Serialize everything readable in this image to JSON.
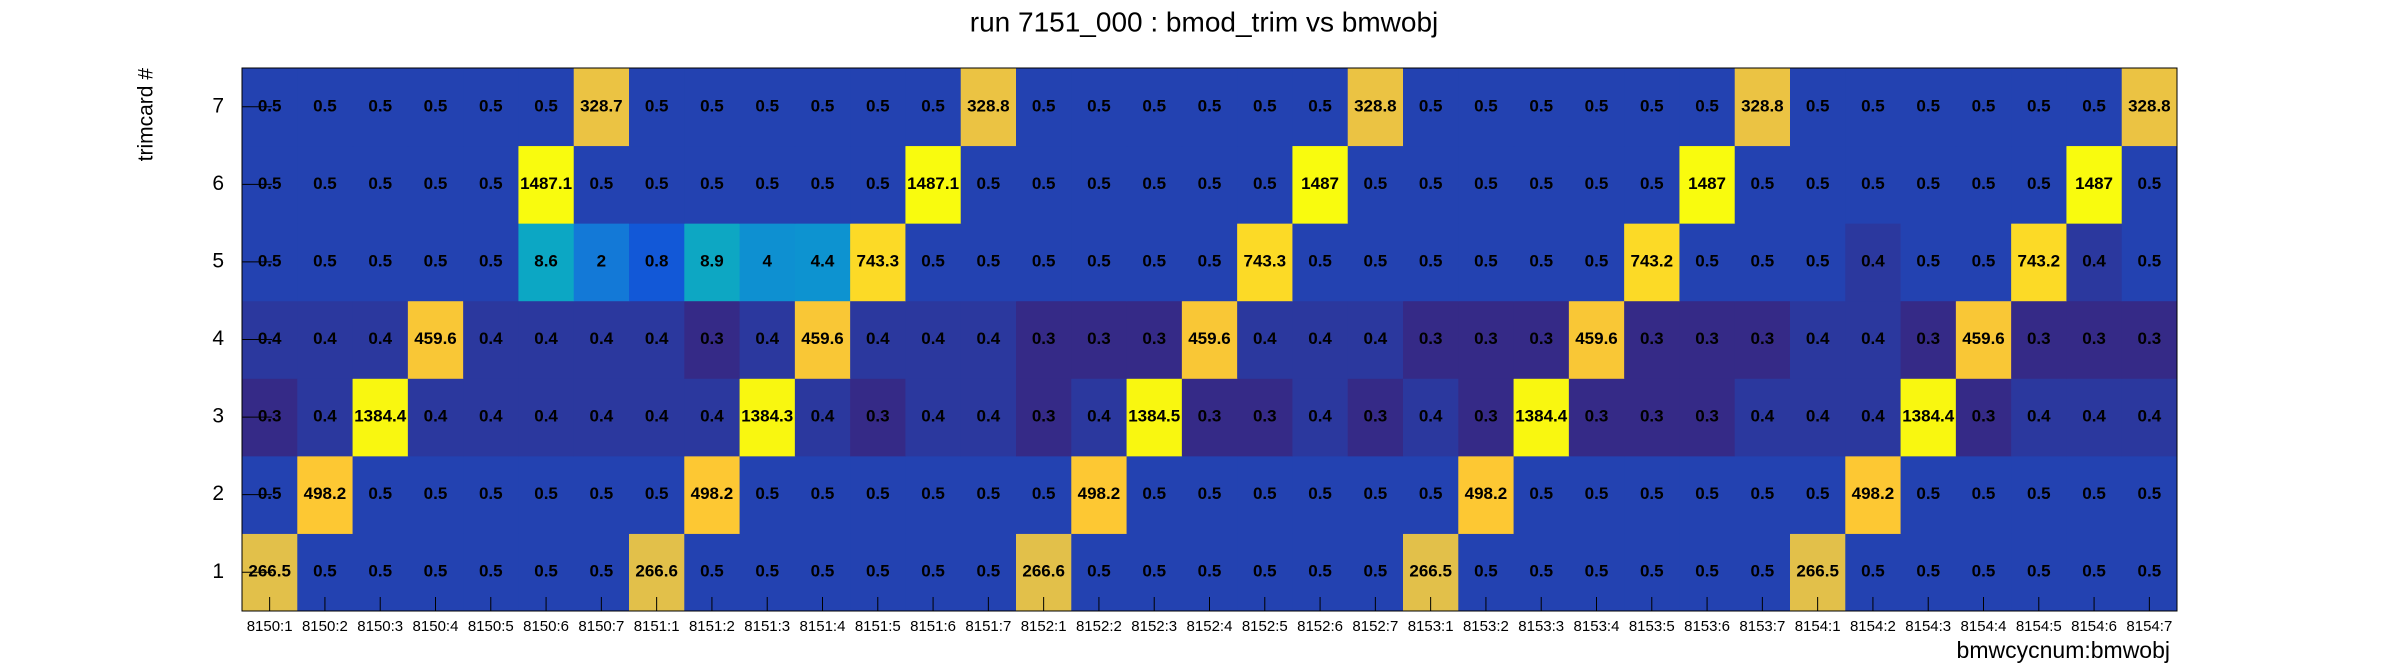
{
  "chart_data": {
    "type": "heatmap",
    "title": "run 7151_000 : bmod_trim vs bmwobj",
    "x_label": "bmwcycnum:bmwobj",
    "y_label": "trimcard #",
    "logz": true,
    "categories": [
      "8150:1",
      "8150:2",
      "8150:3",
      "8150:4",
      "8150:5",
      "8150:6",
      "8150:7",
      "8151:1",
      "8151:2",
      "8151:3",
      "8151:4",
      "8151:5",
      "8151:6",
      "8151:7",
      "8152:1",
      "8152:2",
      "8152:3",
      "8152:4",
      "8152:5",
      "8152:6",
      "8152:7",
      "8153:1",
      "8153:2",
      "8153:3",
      "8153:4",
      "8153:5",
      "8153:6",
      "8153:7",
      "8154:1",
      "8154:2",
      "8154:3",
      "8154:4",
      "8154:5",
      "8154:6",
      "8154:7"
    ],
    "y_categories": [
      "1",
      "2",
      "3",
      "4",
      "5",
      "6",
      "7"
    ],
    "values": [
      [
        266.5,
        0.5,
        0.5,
        0.5,
        0.5,
        0.5,
        0.5,
        266.6,
        0.5,
        0.5,
        0.5,
        0.5,
        0.5,
        0.5,
        266.6,
        0.5,
        0.5,
        0.5,
        0.5,
        0.5,
        0.5,
        266.5,
        0.5,
        0.5,
        0.5,
        0.5,
        0.5,
        0.5,
        266.5,
        0.5,
        0.5,
        0.5,
        0.5,
        0.5,
        0.5
      ],
      [
        0.5,
        498.2,
        0.5,
        0.5,
        0.5,
        0.5,
        0.5,
        0.5,
        498.2,
        0.5,
        0.5,
        0.5,
        0.5,
        0.5,
        0.5,
        498.2,
        0.5,
        0.5,
        0.5,
        0.5,
        0.5,
        0.5,
        498.2,
        0.5,
        0.5,
        0.5,
        0.5,
        0.5,
        0.5,
        498.2,
        0.5,
        0.5,
        0.5,
        0.5,
        0.5
      ],
      [
        0.3,
        0.4,
        1384.4,
        0.4,
        0.4,
        0.4,
        0.4,
        0.4,
        0.4,
        1384.3,
        0.4,
        0.3,
        0.4,
        0.4,
        0.3,
        0.4,
        1384.5,
        0.3,
        0.3,
        0.4,
        0.3,
        0.4,
        0.3,
        1384.4,
        0.3,
        0.3,
        0.3,
        0.4,
        0.4,
        0.4,
        1384.4,
        0.3,
        0.4,
        0.4,
        0.4
      ],
      [
        0.4,
        0.4,
        0.4,
        459.6,
        0.4,
        0.4,
        0.4,
        0.4,
        0.3,
        0.4,
        459.6,
        0.4,
        0.4,
        0.4,
        0.3,
        0.3,
        0.3,
        459.6,
        0.4,
        0.4,
        0.4,
        0.3,
        0.3,
        0.3,
        459.6,
        0.3,
        0.3,
        0.3,
        0.4,
        0.4,
        0.3,
        459.6,
        0.3,
        0.3,
        0.3
      ],
      [
        0.5,
        0.5,
        0.5,
        0.5,
        0.5,
        8.6,
        2.0,
        0.8,
        8.9,
        4.0,
        4.4,
        743.3,
        0.5,
        0.5,
        0.5,
        0.5,
        0.5,
        0.5,
        743.3,
        0.5,
        0.5,
        0.5,
        0.5,
        0.5,
        0.5,
        743.2,
        0.5,
        0.5,
        0.5,
        0.4,
        0.5,
        0.5,
        743.2,
        0.4,
        0.5
      ],
      [
        0.5,
        0.5,
        0.5,
        0.5,
        0.5,
        1487.1,
        0.5,
        0.5,
        0.5,
        0.5,
        0.5,
        0.5,
        1487.1,
        0.5,
        0.5,
        0.5,
        0.5,
        0.5,
        0.5,
        1487.0,
        0.5,
        0.5,
        0.5,
        0.5,
        0.5,
        0.5,
        1487.0,
        0.5,
        0.5,
        0.5,
        0.5,
        0.5,
        0.5,
        1487.0,
        0.5
      ],
      [
        0.5,
        0.5,
        0.5,
        0.5,
        0.5,
        0.5,
        328.7,
        0.5,
        0.5,
        0.5,
        0.5,
        0.5,
        0.5,
        328.8,
        0.5,
        0.5,
        0.5,
        0.5,
        0.5,
        0.5,
        328.8,
        0.5,
        0.5,
        0.5,
        0.5,
        0.5,
        0.5,
        328.8,
        0.5,
        0.5,
        0.5,
        0.5,
        0.5,
        0.5,
        328.8
      ]
    ]
  }
}
